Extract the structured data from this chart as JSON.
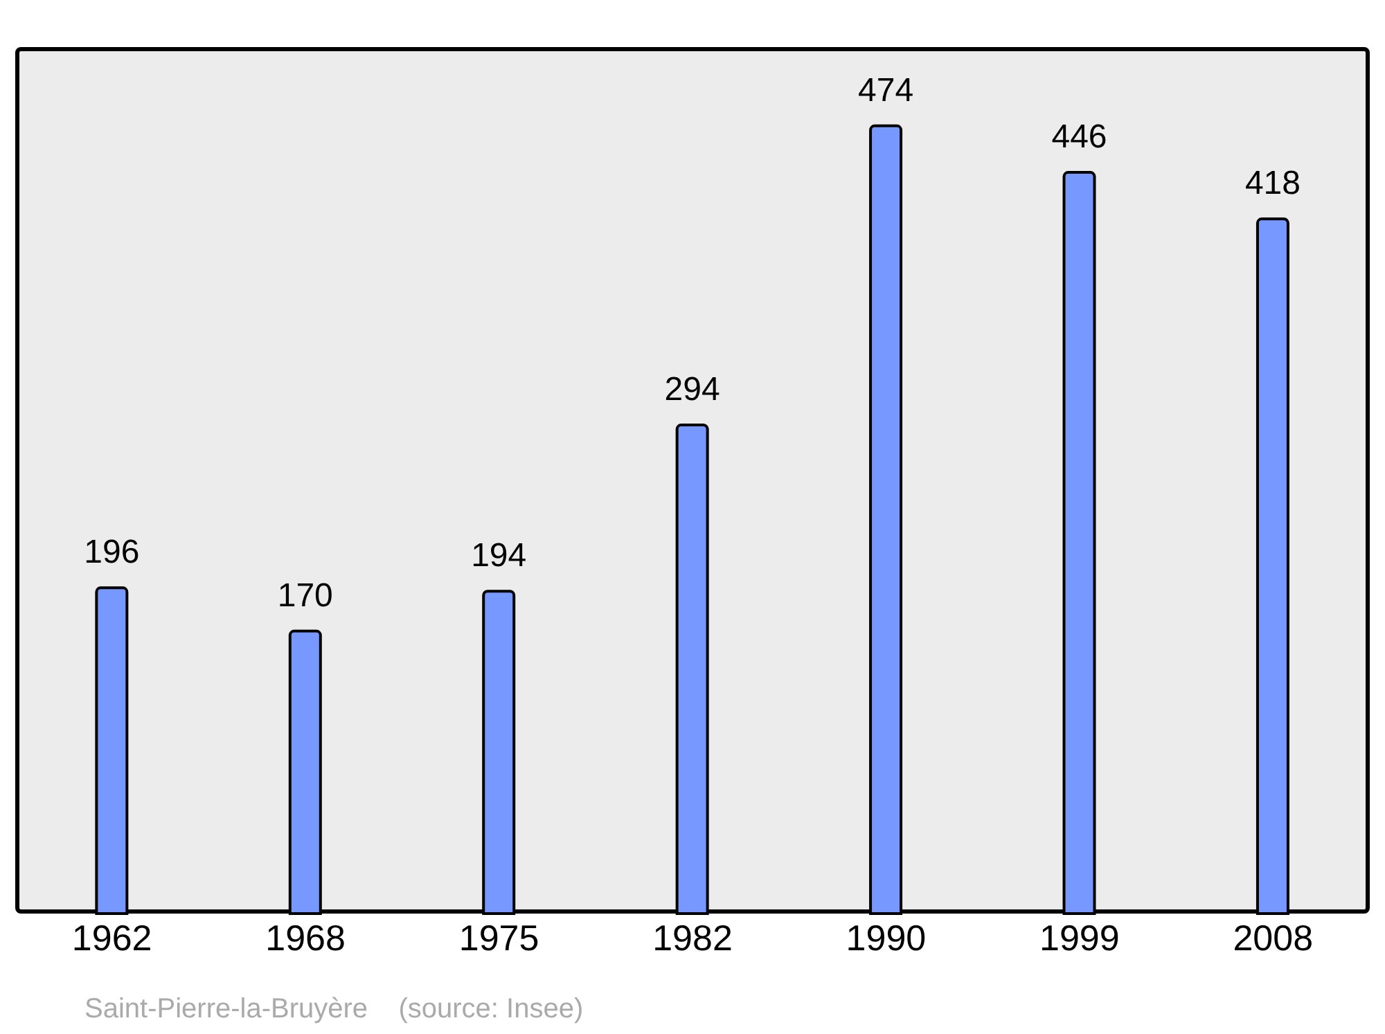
{
  "chart_data": {
    "type": "bar",
    "categories": [
      "1962",
      "1968",
      "1975",
      "1982",
      "1990",
      "1999",
      "2008"
    ],
    "values": [
      196,
      170,
      194,
      294,
      474,
      446,
      418
    ],
    "color": "#7799ff",
    "data_labels": true,
    "annotations": [
      "Saint-Pierre-la-Bruyère    (source: Insee)"
    ]
  }
}
